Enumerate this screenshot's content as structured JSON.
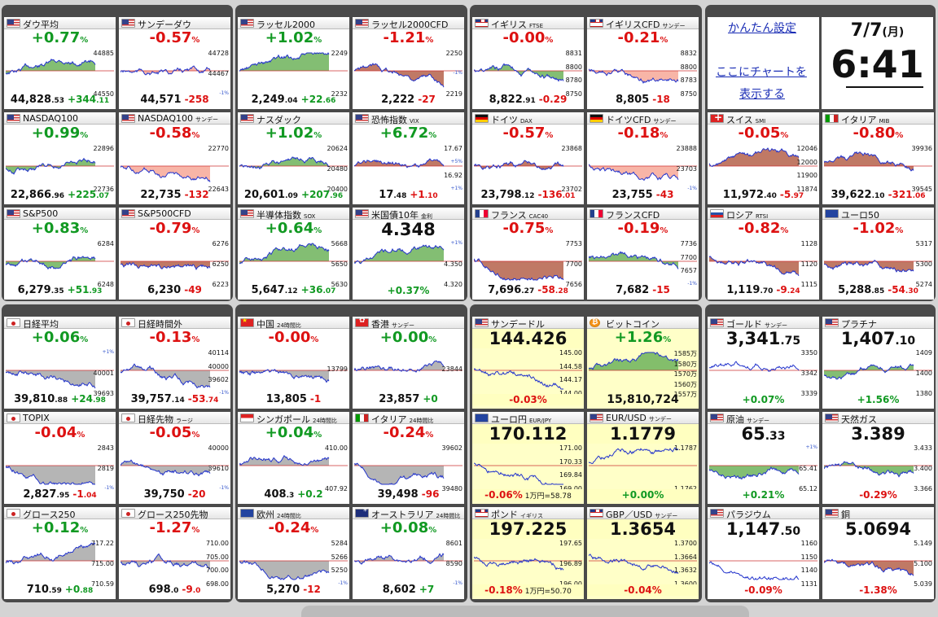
{
  "settings": {
    "easy_settings": "かんたん設定",
    "add_chart_line1": "ここにチャートを",
    "add_chart_line2": "表示する"
  },
  "clock": {
    "date": "7/7",
    "weekday": "(月)",
    "time": "6:41"
  },
  "tiles": [
    {
      "flag": "us",
      "name": "ダウ平均",
      "chg": "+0.77",
      "dir": "up",
      "labels": [
        "44885",
        "44550"
      ],
      "bot": [
        "44,828",
        ".53",
        "+344",
        ".11"
      ],
      "dir2": "up",
      "shade": "green"
    },
    {
      "flag": "us",
      "name": "サンデーダウ",
      "chg": "-0.57",
      "dir": "dn",
      "labels": [
        "44728",
        "44467",
        "-1%"
      ],
      "bot": [
        "44,571",
        "",
        "-258",
        ""
      ],
      "dir2": "dn",
      "shade": "red"
    },
    {
      "flag": "us",
      "name": "ラッセル2000",
      "chg": "+1.02",
      "dir": "up",
      "labels": [
        "2249",
        "2232"
      ],
      "bot": [
        "2,249",
        ".04",
        "+22",
        ".66"
      ],
      "dir2": "up",
      "shade": "green"
    },
    {
      "flag": "us",
      "name": "ラッセル2000CFD",
      "chg": "-1.21",
      "dir": "dn",
      "labels": [
        "2250",
        "-1%",
        "2219"
      ],
      "bot": [
        "2,222",
        "",
        "-27",
        ""
      ],
      "dir2": "dn",
      "shade": "brown"
    },
    {
      "flag": "uk",
      "name": "イギリス",
      "sub": "FTSE",
      "chg": "-0.00",
      "dir": "dn",
      "labels": [
        "8831",
        "8800",
        "8780",
        "8750"
      ],
      "bot": [
        "8,822",
        ".91",
        "-0.29",
        ""
      ],
      "dir2": "dn",
      "shade": "green"
    },
    {
      "flag": "uk",
      "name": "イギリスCFD",
      "sub": "サンデー",
      "chg": "-0.21",
      "dir": "dn",
      "labels": [
        "8832",
        "8800",
        "8783",
        "8750"
      ],
      "bot": [
        "8,805",
        "",
        "-18",
        ""
      ],
      "dir2": "dn",
      "shade": "red"
    },
    {
      "flag": "us",
      "name": "NASDAQ100",
      "chg": "+0.99",
      "dir": "up",
      "labels": [
        "22896",
        "22736"
      ],
      "bot": [
        "22,866",
        ".96",
        "+225",
        ".07"
      ],
      "dir2": "up",
      "shade": "green"
    },
    {
      "flag": "us",
      "name": "NASDAQ100",
      "sub": "サンデー",
      "chg": "-0.58",
      "dir": "dn",
      "labels": [
        "22770",
        "22643"
      ],
      "bot": [
        "22,735",
        "",
        "-132",
        ""
      ],
      "dir2": "dn",
      "shade": "red"
    },
    {
      "flag": "us",
      "name": "ナスダック",
      "chg": "+1.02",
      "dir": "up",
      "labels": [
        "20624",
        "20480",
        "20400"
      ],
      "bot": [
        "20,601",
        ".09",
        "+207",
        ".96"
      ],
      "dir2": "up",
      "shade": "green"
    },
    {
      "flag": "us",
      "name": "恐怖指数",
      "sub": "VIX",
      "chg": "+6.72",
      "dir": "up",
      "labels": [
        "17.67",
        "+5%",
        "16.92",
        "+1%"
      ],
      "bot": [
        "17",
        ".48",
        "+1",
        ".10"
      ],
      "dir2": "dn",
      "shade": "brown"
    },
    {
      "flag": "de",
      "name": "ドイツ",
      "sub": "DAX",
      "chg": "-0.57",
      "dir": "dn",
      "labels": [
        "23868",
        "23702"
      ],
      "bot": [
        "23,798",
        ".12",
        "-136",
        ".01"
      ],
      "dir2": "dn",
      "shade": "brown"
    },
    {
      "flag": "de",
      "name": "ドイツCFD",
      "sub": "サンデー",
      "chg": "-0.18",
      "dir": "dn",
      "labels": [
        "23888",
        "23703",
        "-1%"
      ],
      "bot": [
        "23,755",
        "",
        "-43",
        ""
      ],
      "dir2": "dn",
      "shade": "red"
    },
    {
      "flag": "ch",
      "name": "スイス",
      "sub": "SMI",
      "chg": "-0.05",
      "dir": "dn",
      "labels": [
        "12046",
        "12000",
        "11900",
        "11874"
      ],
      "bot": [
        "11,972",
        ".40",
        "-5",
        ".97"
      ],
      "dir2": "dn",
      "shade": "brown"
    },
    {
      "flag": "it",
      "name": "イタリア",
      "sub": "MIB",
      "chg": "-0.80",
      "dir": "dn",
      "labels": [
        "39936",
        "39545"
      ],
      "bot": [
        "39,622",
        ".10",
        "-321",
        ".06"
      ],
      "dir2": "dn",
      "shade": "brown"
    },
    {
      "flag": "us",
      "name": "S&P500",
      "chg": "+0.83",
      "dir": "up",
      "labels": [
        "6284",
        "6248"
      ],
      "bot": [
        "6,279",
        ".35",
        "+51",
        ".93"
      ],
      "dir2": "up",
      "shade": "green"
    },
    {
      "flag": "us",
      "name": "S&P500CFD",
      "chg": "-0.79",
      "dir": "dn",
      "labels": [
        "6276",
        "6250",
        "6223"
      ],
      "bot": [
        "6,230",
        "",
        "-49",
        ""
      ],
      "dir2": "dn",
      "shade": "brown"
    },
    {
      "flag": "us",
      "name": "半導体指数",
      "sub": "SOX",
      "chg": "+0.64",
      "dir": "up",
      "labels": [
        "5668",
        "5650",
        "5630"
      ],
      "bot": [
        "5,647",
        ".12",
        "+36",
        ".07"
      ],
      "dir2": "up",
      "shade": "green"
    },
    {
      "flag": "us",
      "name": "米国債10年",
      "sub": "金利",
      "big": "4.348",
      "labels": [
        "+1%",
        "4.350",
        "4.320"
      ],
      "pct": "+0.37%",
      "dir2": "up",
      "shade": "green"
    },
    {
      "flag": "fr",
      "name": "フランス",
      "sub": "CAC40",
      "chg": "-0.75",
      "dir": "dn",
      "labels": [
        "7753",
        "7700",
        "7656"
      ],
      "bot": [
        "7,696",
        ".27",
        "-58",
        ".28"
      ],
      "dir2": "dn",
      "shade": "brown"
    },
    {
      "flag": "fr",
      "name": "フランスCFD",
      "chg": "-0.19",
      "dir": "dn",
      "labels": [
        "7736",
        "7700",
        "7657",
        "-1%"
      ],
      "bot": [
        "7,682",
        "",
        "-15",
        ""
      ],
      "dir2": "dn",
      "shade": "green"
    },
    {
      "flag": "ru",
      "name": "ロシア",
      "sub": "RTSI",
      "chg": "-0.82",
      "dir": "dn",
      "labels": [
        "1128",
        "1120",
        "1115"
      ],
      "bot": [
        "1,119",
        ".70",
        "-9",
        ".24"
      ],
      "dir2": "dn",
      "shade": "brown"
    },
    {
      "flag": "eu",
      "name": "ユーロ50",
      "chg": "-1.02",
      "dir": "dn",
      "labels": [
        "5317",
        "5300",
        "5274"
      ],
      "bot": [
        "5,288",
        ".85",
        "-54",
        ".30"
      ],
      "dir2": "dn",
      "shade": "brown"
    },
    {
      "flag": "jp",
      "name": "日経平均",
      "chg": "+0.06",
      "dir": "up",
      "labels": [
        "+1%",
        "40001",
        "39693"
      ],
      "bot": [
        "39,810",
        ".88",
        "+24",
        ".98"
      ],
      "dir2": "up",
      "shade": "grey"
    },
    {
      "flag": "jp",
      "name": "日経時間外",
      "chg": "-0.13",
      "dir": "dn",
      "labels": [
        "40114",
        "40000",
        "39602",
        "-1%"
      ],
      "bot": [
        "39,757",
        ".14",
        "-53",
        ".74"
      ],
      "dir2": "dn",
      "shade": "grey"
    },
    {
      "flag": "cn",
      "name": "中国",
      "sub": "24時間比",
      "chg": "-0.00",
      "dir": "dn",
      "labels": [
        "13799"
      ],
      "bot": [
        "13,805",
        "",
        "-1",
        ""
      ],
      "dir2": "dn",
      "shade": "grey"
    },
    {
      "flag": "hk",
      "name": "香港",
      "sub": "サンデー",
      "chg": "+0.00",
      "dir": "up",
      "labels": [
        "23844"
      ],
      "bot": [
        "23,857",
        "",
        "+0",
        ""
      ],
      "dir2": "up",
      "shade": "grey"
    },
    {
      "flag": "us",
      "name": "サンデードル",
      "big": "144.426",
      "yel": true,
      "labels": [
        "145.00",
        "144.58",
        "144.17",
        "144.00"
      ],
      "pct": "-0.03%",
      "dir2": "dn",
      "shade": "none"
    },
    {
      "flag": "btc",
      "name": "ビットコイン",
      "chg": "+1.26",
      "dir": "up",
      "yel": true,
      "labels": [
        "1585万",
        "1580万",
        "1570万",
        "1560万",
        "1557万"
      ],
      "bigbot": "15,810,724",
      "dir2": "up",
      "shade": "green"
    },
    {
      "flag": "us",
      "name": "ゴールド",
      "sub": "サンデー",
      "big": "3,341",
      "bigdec": ".75",
      "labels": [
        "3350",
        "3342",
        "3339"
      ],
      "pct": "+0.07%",
      "dir2": "up",
      "shade": "none"
    },
    {
      "flag": "us",
      "name": "プラチナ",
      "big": "1,407",
      "bigdec": ".10",
      "labels": [
        "1409",
        "1400",
        "1380"
      ],
      "pct": "+1.56%",
      "dir2": "up",
      "shade": "green"
    },
    {
      "flag": "jp",
      "name": "TOPIX",
      "chg": "-0.04",
      "dir": "dn",
      "labels": [
        "2843",
        "2819",
        "-1%"
      ],
      "bot": [
        "2,827",
        ".95",
        "-1",
        ".04"
      ],
      "dir2": "dn",
      "shade": "grey"
    },
    {
      "flag": "jp",
      "name": "日経先物",
      "sub": "ラージ",
      "chg": "-0.05",
      "dir": "dn",
      "labels": [
        "40000",
        "39610",
        "-1%"
      ],
      "bot": [
        "39,750",
        "",
        "-20",
        ""
      ],
      "dir2": "dn",
      "shade": "grey"
    },
    {
      "flag": "sg",
      "name": "シンガポール",
      "sub": "24時間比",
      "chg": "+0.04",
      "dir": "up",
      "labels": [
        "410.00",
        "407.92"
      ],
      "bot": [
        "408",
        ".3",
        "+0.2",
        ""
      ],
      "dir2": "up",
      "shade": "grey"
    },
    {
      "flag": "it",
      "name": "イタリア",
      "sub": "24時間比",
      "chg": "-0.24",
      "dir": "dn",
      "labels": [
        "39602",
        "39480"
      ],
      "bot": [
        "39,498",
        "",
        "-96",
        ""
      ],
      "dir2": "dn",
      "shade": "grey"
    },
    {
      "flag": "eu",
      "name": "ユーロ円",
      "sub": "EUR/JPY",
      "big": "170.112",
      "yel": true,
      "labels": [
        "171.00",
        "170.33",
        "169.84",
        "169.00"
      ],
      "pct": "-0.06%",
      "ex": "1万円=58.78",
      "dir2": "dn",
      "shade": "none"
    },
    {
      "flag": "us",
      "name": "EUR/USD",
      "sub": "サンデー",
      "big": "1.1779",
      "yel": true,
      "labels": [
        "1.1787",
        "1.1762"
      ],
      "pct": "+0.00%",
      "dir2": "up",
      "shade": "none"
    },
    {
      "flag": "us",
      "name": "原油",
      "sub": "サンデー",
      "big": "65",
      "bigdec": ".33",
      "labels": [
        "+1%",
        "65.41",
        "65.12"
      ],
      "pct": "+0.21%",
      "dir2": "up",
      "shade": "green"
    },
    {
      "flag": "us",
      "name": "天然ガス",
      "big": "3.389",
      "labels": [
        "3.433",
        "3.400",
        "3.366"
      ],
      "pct": "-0.29%",
      "dir2": "dn",
      "shade": "green"
    },
    {
      "flag": "jp",
      "name": "グロース250",
      "chg": "+0.12",
      "dir": "up",
      "labels": [
        "717.22",
        "715.00",
        "710.59"
      ],
      "bot": [
        "710",
        ".59",
        "+0",
        ".88"
      ],
      "dir2": "up",
      "shade": "grey"
    },
    {
      "flag": "jp",
      "name": "グロース250先物",
      "chg": "-1.27",
      "dir": "dn",
      "labels": [
        "710.00",
        "705.00",
        "700.00",
        "698.00"
      ],
      "bot": [
        "698",
        ".0",
        "-9",
        ".0"
      ],
      "dir2": "dn",
      "shade": "grey"
    },
    {
      "flag": "eu",
      "name": "欧州",
      "sub": "24時間比",
      "chg": "-0.24",
      "dir": "dn",
      "labels": [
        "5284",
        "5266",
        "5250",
        "-1%"
      ],
      "bot": [
        "5,270",
        "",
        "-12",
        ""
      ],
      "dir2": "dn",
      "shade": "grey"
    },
    {
      "flag": "au",
      "name": "オーストラリア",
      "sub": "24時間比",
      "chg": "+0.08",
      "dir": "up",
      "labels": [
        "8601",
        "8590",
        "-1%"
      ],
      "bot": [
        "8,602",
        "",
        "+7",
        ""
      ],
      "dir2": "up",
      "shade": "grey"
    },
    {
      "flag": "uk",
      "name": "ポンド",
      "sub": "イギリス",
      "big": "197.225",
      "yel": true,
      "labels": [
        "197.65",
        "196.89",
        "196.00"
      ],
      "pct": "-0.18%",
      "ex": "1万円=50.70",
      "dir2": "dn",
      "shade": "none"
    },
    {
      "flag": "uk",
      "name": "GBP／USD",
      "sub": "サンデー",
      "big": "1.3654",
      "yel": true,
      "labels": [
        "1.3700",
        "1.3664",
        "1.3632",
        "1.3600"
      ],
      "pct": "-0.04%",
      "dir2": "dn",
      "shade": "none"
    },
    {
      "flag": "us",
      "name": "パラジウム",
      "big": "1,147",
      "bigdec": ".50",
      "labels": [
        "1160",
        "1150",
        "1140",
        "1131"
      ],
      "pct": "-0.09%",
      "dir2": "dn",
      "shade": "none"
    },
    {
      "flag": "us",
      "name": "銅",
      "big": "5.0694",
      "labels": [
        "5.149",
        "5.100",
        "5.039"
      ],
      "pct": "-1.38%",
      "dir2": "dn",
      "shade": "brown"
    }
  ]
}
